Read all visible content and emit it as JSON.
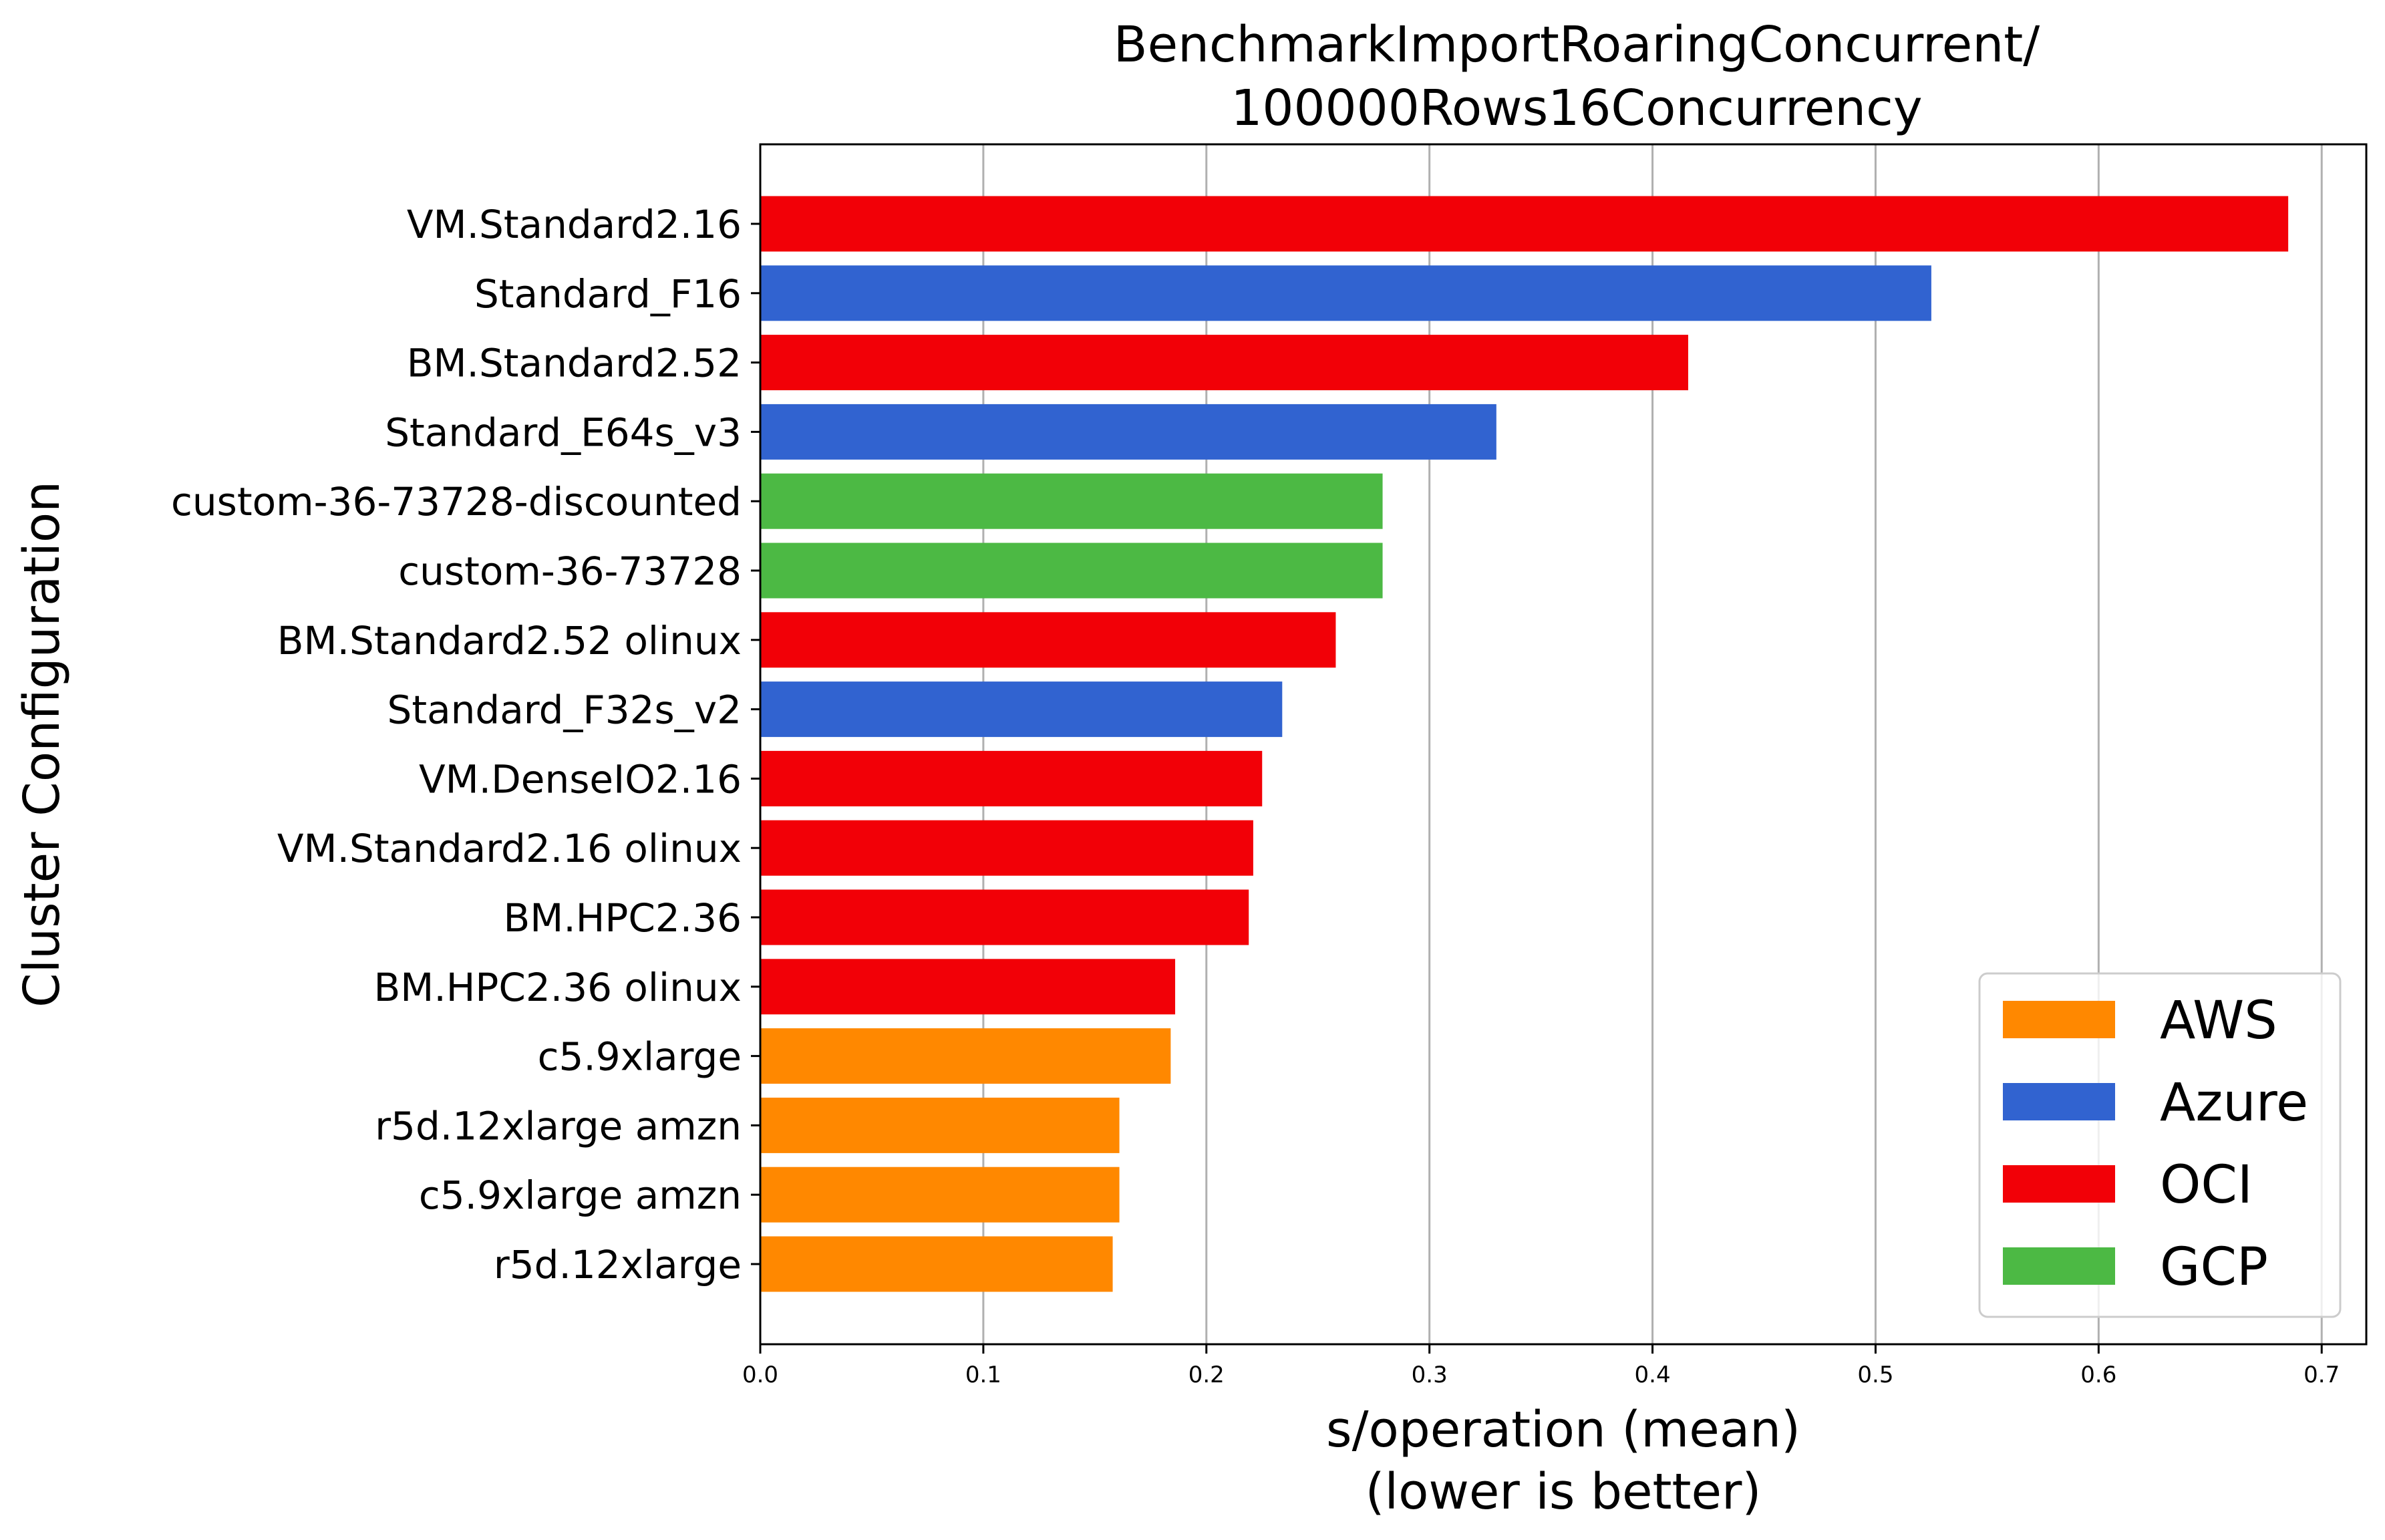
{
  "chart_data": {
    "type": "bar",
    "orientation": "horizontal",
    "title": [
      "BenchmarkImportRoaringConcurrent/",
      "100000Rows16Concurrency"
    ],
    "xlabel": [
      "s/operation (mean)",
      "(lower is better)"
    ],
    "ylabel": "Cluster Configuration",
    "xlim": [
      0,
      0.72
    ],
    "xticks": [
      0.0,
      0.1,
      0.2,
      0.3,
      0.4,
      0.5,
      0.6,
      0.7
    ],
    "xtick_labels": [
      "0.0",
      "0.1",
      "0.2",
      "0.3",
      "0.4",
      "0.5",
      "0.6",
      "0.7"
    ],
    "grid": "vertical",
    "legend_position": "bottom-right",
    "colors": {
      "AWS": "#ff8800",
      "Azure": "#3163d0",
      "OCI": "#f20007",
      "GCP": "#4cb944"
    },
    "legend": [
      "AWS",
      "Azure",
      "OCI",
      "GCP"
    ],
    "bars": [
      {
        "label": "VM.Standard2.16",
        "value": 0.685,
        "group": "OCI"
      },
      {
        "label": "Standard_F16",
        "value": 0.525,
        "group": "Azure"
      },
      {
        "label": "BM.Standard2.52",
        "value": 0.416,
        "group": "OCI"
      },
      {
        "label": "Standard_E64s_v3",
        "value": 0.33,
        "group": "Azure"
      },
      {
        "label": "custom-36-73728-discounted",
        "value": 0.279,
        "group": "GCP"
      },
      {
        "label": "custom-36-73728",
        "value": 0.279,
        "group": "GCP"
      },
      {
        "label": "BM.Standard2.52 olinux",
        "value": 0.258,
        "group": "OCI"
      },
      {
        "label": "Standard_F32s_v2",
        "value": 0.234,
        "group": "Azure"
      },
      {
        "label": "VM.DenseIO2.16",
        "value": 0.225,
        "group": "OCI"
      },
      {
        "label": "VM.Standard2.16 olinux",
        "value": 0.221,
        "group": "OCI"
      },
      {
        "label": "BM.HPC2.36",
        "value": 0.219,
        "group": "OCI"
      },
      {
        "label": "BM.HPC2.36 olinux",
        "value": 0.186,
        "group": "OCI"
      },
      {
        "label": "c5.9xlarge",
        "value": 0.184,
        "group": "AWS"
      },
      {
        "label": "r5d.12xlarge amzn",
        "value": 0.161,
        "group": "AWS"
      },
      {
        "label": "c5.9xlarge amzn",
        "value": 0.161,
        "group": "AWS"
      },
      {
        "label": "r5d.12xlarge",
        "value": 0.158,
        "group": "AWS"
      }
    ]
  }
}
